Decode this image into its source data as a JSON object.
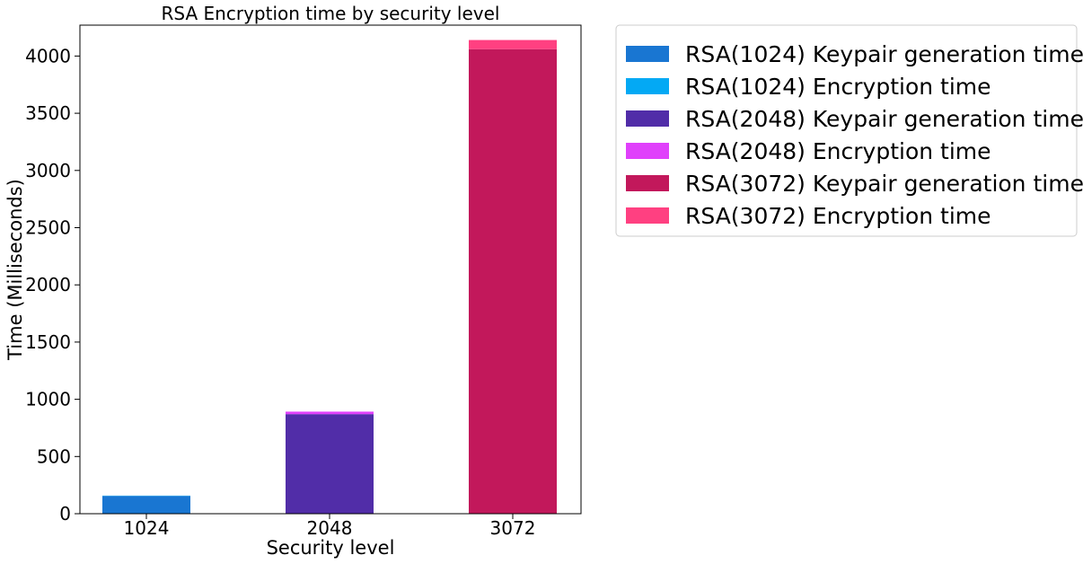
{
  "chart_data": {
    "type": "bar",
    "stacked": true,
    "title": "RSA Encryption time by security level",
    "xlabel": "Security level",
    "ylabel": "Time (Milliseconds)",
    "categories": [
      "1024",
      "2048",
      "3072"
    ],
    "ylim": [
      0,
      4270
    ],
    "yticks": [
      0,
      500,
      1000,
      1500,
      2000,
      2500,
      3000,
      3500,
      4000
    ],
    "grid": false,
    "legend_position": "outside-top-right",
    "series": [
      {
        "name": "RSA(1024) Keypair generation time",
        "color": "#1976d2",
        "values": [
          155,
          0,
          0
        ]
      },
      {
        "name": "RSA(1024) Encryption time",
        "color": "#03a9f4",
        "values": [
          3,
          0,
          0
        ]
      },
      {
        "name": "RSA(2048) Keypair generation time",
        "color": "#512da8",
        "values": [
          0,
          870,
          0
        ]
      },
      {
        "name": "RSA(2048) Encryption time",
        "color": "#e040fb",
        "values": [
          0,
          22,
          0
        ]
      },
      {
        "name": "RSA(3072) Keypair generation time",
        "color": "#c2185b",
        "values": [
          0,
          0,
          4060
        ]
      },
      {
        "name": "RSA(3072) Encryption time",
        "color": "#ff4081",
        "values": [
          0,
          0,
          80
        ]
      }
    ]
  }
}
